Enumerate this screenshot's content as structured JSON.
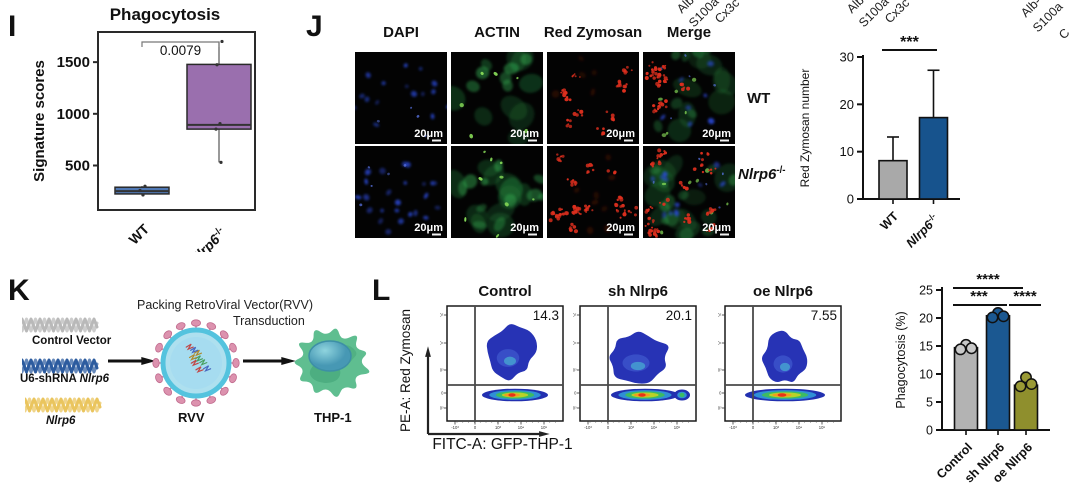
{
  "figure": {
    "panel_letters": {
      "I": "I",
      "J": "J",
      "K": "K",
      "L": "L"
    },
    "top_clipped_labels": {
      "groups": [
        [
          "Alb",
          "S100a",
          "Cx3c"
        ],
        [
          "Alb",
          "S100a",
          "Cx3c"
        ],
        [
          "Alb-",
          "S100a",
          "C"
        ]
      ]
    }
  },
  "panel_J": {
    "column_headers": [
      "DAPI",
      "ACTIN",
      "Red Zymosan",
      "Merge"
    ],
    "row_labels": [
      {
        "text": "WT",
        "italic": false,
        "sup": ""
      },
      {
        "text": "Nlrp6",
        "italic": true,
        "sup": "-/-"
      }
    ],
    "channels": [
      "dapi",
      "actin",
      "zymosan",
      "merge"
    ],
    "scale_label": "20μm"
  },
  "panel_K": {
    "title": "Packing RetroViral Vector(RVV)",
    "transduction_label": "Transduction",
    "vectors": [
      {
        "label": "Control Vector",
        "italic_part": "",
        "color": "#b9b9b9"
      },
      {
        "label": "U6-shRNA ",
        "italic_part": "Nlrp6",
        "color": "#2d5c9f"
      },
      {
        "label": "",
        "italic_part": "Nlrp6",
        "color": "#eac55e"
      }
    ],
    "rvv_label": "RVV",
    "cell_label": "THP-1"
  },
  "panel_L": {
    "xlabel": "FITC-A: GFP-THP-1",
    "ylabel": "PE-A: Red Zymosan"
  },
  "chart_data": [
    {
      "type": "box",
      "title": "Phagocytosis",
      "ylabel": "Signature scores",
      "categories": [
        "WT",
        "Nlrp6-/-"
      ],
      "yticks": [
        500,
        1000,
        1500
      ],
      "ylim": [
        70,
        1790
      ],
      "p_value": "0.0079",
      "series": [
        {
          "name": "WT",
          "color": "#5078b4",
          "whislo": 210,
          "q1": 225,
          "med": 252,
          "q3": 290,
          "whishi": 302,
          "points": [
            300,
            258,
            215
          ]
        },
        {
          "name": "Nlrp6-/-",
          "color": "#9a6fae",
          "whislo": 530,
          "q1": 852,
          "med": 893,
          "q3": 1478,
          "whishi": 1700,
          "points": [
            1700,
            1475,
            905,
            852,
            530
          ]
        }
      ]
    },
    {
      "type": "bar",
      "ylabel": "Red Zymosan number",
      "categories": [
        "WT",
        "Nlrp6-/-"
      ],
      "values": [
        8.1,
        17.2
      ],
      "errors_up": [
        5.0,
        10.0
      ],
      "colors": [
        "#a9a9a9",
        "#17538d"
      ],
      "yticks": [
        0,
        10,
        20,
        30
      ],
      "ylim": [
        0,
        30
      ],
      "significance": "***"
    },
    {
      "type": "flow-density",
      "xlabel": "FITC-A: GFP-THP-1",
      "ylabel": "PE-A: Red Zymosan",
      "plots": [
        {
          "title": "Control",
          "percent": "14.3"
        },
        {
          "title": "sh Nlrp6",
          "percent": "20.1"
        },
        {
          "title": "oe Nlrp6",
          "percent": "7.55"
        }
      ],
      "xticks": [
        "-10³",
        "0",
        "10³",
        "10⁴",
        "10⁵"
      ],
      "yticks": [
        "10⁵",
        "10⁴",
        "10³",
        "0",
        "-10³"
      ]
    },
    {
      "type": "bar",
      "ylabel": "Phagocytosis (%)",
      "categories": [
        "Control",
        "sh Nlrp6",
        "oe Nlrp6"
      ],
      "values": [
        14.7,
        20.4,
        8.0
      ],
      "points": [
        [
          15.2,
          14.4,
          14.6
        ],
        [
          20.9,
          20.1,
          20.3
        ],
        [
          9.4,
          7.8,
          8.2
        ]
      ],
      "colors": [
        "#b3b3b3",
        "#1b5891",
        "#8f8f2d"
      ],
      "dot_colors": [
        "#c9c9c9",
        "#1b5891",
        "#9a9a35"
      ],
      "yticks": [
        0,
        5,
        10,
        15,
        20,
        25
      ],
      "ylim": [
        0,
        25
      ],
      "significance": [
        {
          "a": "Control",
          "b": "oe Nlrp6",
          "stars": "****"
        },
        {
          "a": "Control",
          "b": "sh Nlrp6",
          "stars": "***"
        },
        {
          "a": "sh Nlrp6",
          "b": "oe Nlrp6",
          "stars": "****"
        }
      ]
    }
  ]
}
